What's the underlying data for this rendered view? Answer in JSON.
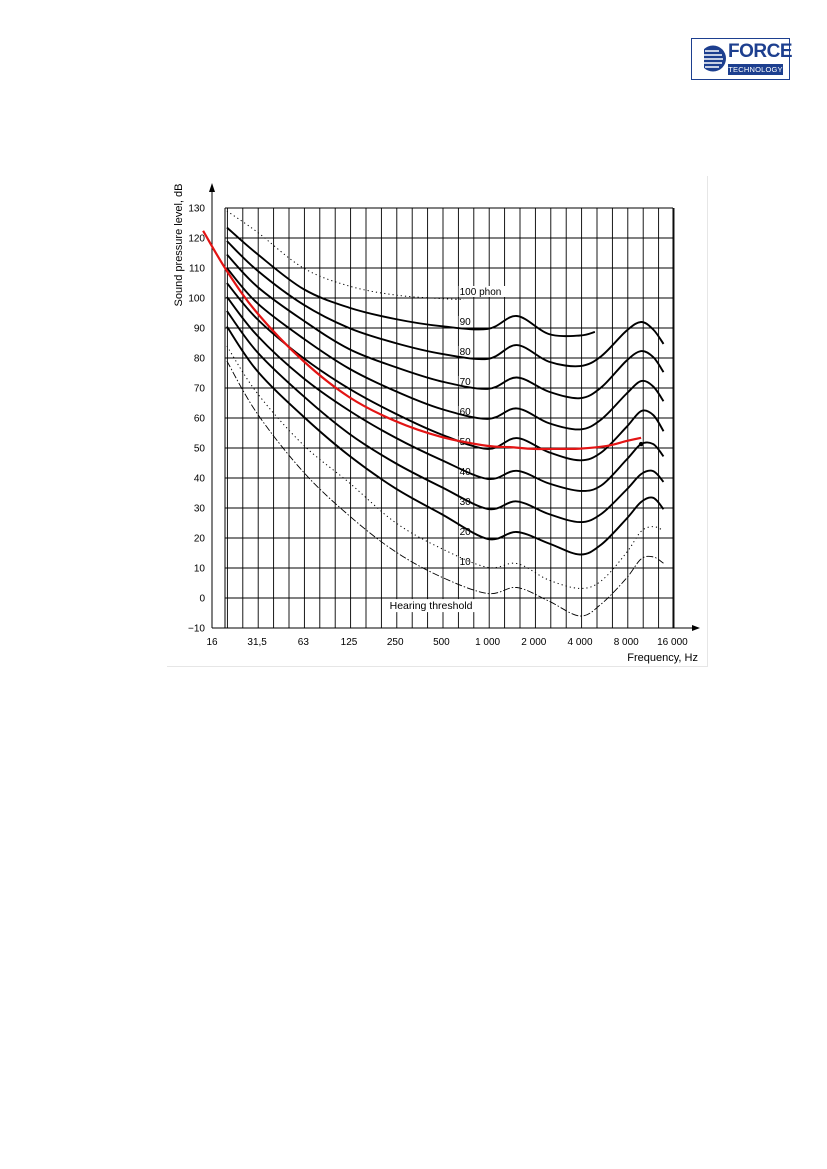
{
  "logo": {
    "main": "FORCE",
    "sub": "TECHNOLOGY"
  },
  "chart_data": {
    "type": "line",
    "ylabel": "Sound pressure level, dB",
    "xlabel": "Frequency, Hz",
    "x_scale": "log",
    "x_ticks": [
      {
        "value": 16,
        "label": "16"
      },
      {
        "value": 31.5,
        "label": "31,5"
      },
      {
        "value": 63,
        "label": "63"
      },
      {
        "value": 125,
        "label": "125"
      },
      {
        "value": 250,
        "label": "250"
      },
      {
        "value": 500,
        "label": "500"
      },
      {
        "value": 1000,
        "label": "1 000"
      },
      {
        "value": 2000,
        "label": "2 000"
      },
      {
        "value": 4000,
        "label": "4 000"
      },
      {
        "value": 8000,
        "label": "8 000"
      },
      {
        "value": 16000,
        "label": "16 000"
      }
    ],
    "ylim": [
      -10,
      130
    ],
    "y_ticks": [
      -10,
      0,
      10,
      20,
      30,
      40,
      50,
      60,
      70,
      80,
      90,
      100,
      110,
      120,
      130
    ],
    "y_tick_labels": [
      "−10",
      "0",
      "10",
      "20",
      "30",
      "40",
      "50",
      "60",
      "70",
      "80",
      "90",
      "100",
      "110",
      "120",
      "130"
    ],
    "grid": true,
    "contour_labels": [
      {
        "text": "100 phon",
        "x": 1000,
        "y": 102
      },
      {
        "text": "90",
        "x": 1000,
        "y": 92
      },
      {
        "text": "80",
        "x": 1000,
        "y": 82
      },
      {
        "text": "70",
        "x": 1000,
        "y": 72
      },
      {
        "text": "60",
        "x": 1000,
        "y": 62
      },
      {
        "text": "50",
        "x": 1000,
        "y": 52
      },
      {
        "text": "40",
        "x": 1000,
        "y": 42
      },
      {
        "text": "30",
        "x": 1000,
        "y": 32
      },
      {
        "text": "20",
        "x": 1000,
        "y": 22
      },
      {
        "text": "10",
        "x": 1000,
        "y": 12
      }
    ],
    "annotation": {
      "text": "Hearing threshold",
      "x": 1000,
      "y": -2.7
    },
    "marker": {
      "x": 10000,
      "y": 51.3
    },
    "series": [
      {
        "phon": 90,
        "style": "solid",
        "points": [
          [
            20,
            123.5
          ],
          [
            31.5,
            114.7
          ],
          [
            63,
            103
          ],
          [
            125,
            96.8
          ],
          [
            250,
            93
          ],
          [
            500,
            90.6
          ],
          [
            1000,
            89.7
          ],
          [
            1550,
            94
          ],
          [
            2500,
            88
          ],
          [
            4000,
            87.5
          ],
          [
            5000,
            88.7
          ]
        ]
      },
      {
        "phon": 80,
        "style": "solid",
        "points": [
          [
            20,
            119
          ],
          [
            31.5,
            109.2
          ],
          [
            63,
            97.8
          ],
          [
            125,
            90
          ],
          [
            250,
            85
          ],
          [
            500,
            81.4
          ],
          [
            1000,
            79.7
          ],
          [
            1550,
            84.3
          ],
          [
            2500,
            78.8
          ],
          [
            4000,
            77.3
          ],
          [
            5500,
            80.6
          ],
          [
            8000,
            89
          ],
          [
            10000,
            92
          ],
          [
            12000,
            89.5
          ],
          [
            14000,
            84.7
          ]
        ]
      },
      {
        "phon": 70,
        "style": "solid",
        "points": [
          [
            20,
            114.5
          ],
          [
            31.5,
            103.8
          ],
          [
            63,
            92.5
          ],
          [
            125,
            83
          ],
          [
            250,
            77
          ],
          [
            500,
            72.2
          ],
          [
            1000,
            69.7
          ],
          [
            1550,
            73.5
          ],
          [
            2500,
            68.8
          ],
          [
            4000,
            66.6
          ],
          [
            5500,
            70.2
          ],
          [
            8000,
            79
          ],
          [
            10000,
            82.3
          ],
          [
            12000,
            80.3
          ],
          [
            14000,
            75.3
          ]
        ]
      },
      {
        "phon": 60,
        "style": "solid",
        "points": [
          [
            20,
            110
          ],
          [
            31.5,
            98.3
          ],
          [
            63,
            86.5
          ],
          [
            125,
            76.5
          ],
          [
            250,
            69
          ],
          [
            500,
            63
          ],
          [
            1000,
            59.7
          ],
          [
            1550,
            63.2
          ],
          [
            2500,
            58.3
          ],
          [
            4000,
            56.2
          ],
          [
            5500,
            59.5
          ],
          [
            8000,
            68
          ],
          [
            10000,
            72.3
          ],
          [
            12000,
            70.5
          ],
          [
            14000,
            65.6
          ]
        ]
      },
      {
        "phon": 50,
        "style": "solid",
        "points": [
          [
            20,
            105
          ],
          [
            31.5,
            93
          ],
          [
            63,
            80
          ],
          [
            125,
            69.8
          ],
          [
            250,
            61.5
          ],
          [
            500,
            54.5
          ],
          [
            1000,
            49.7
          ],
          [
            1550,
            53.3
          ],
          [
            2500,
            48.6
          ],
          [
            4000,
            45.9
          ],
          [
            5500,
            48.5
          ],
          [
            8000,
            56.9
          ],
          [
            10000,
            62.3
          ],
          [
            12000,
            61
          ],
          [
            14000,
            55.6
          ]
        ]
      },
      {
        "phon": 40,
        "style": "solid",
        "points": [
          [
            20,
            100.4
          ],
          [
            31.5,
            87.5
          ],
          [
            63,
            73.3
          ],
          [
            125,
            62.5
          ],
          [
            250,
            53.5
          ],
          [
            500,
            46
          ],
          [
            1000,
            39.7
          ],
          [
            1550,
            42.4
          ],
          [
            2500,
            38.2
          ],
          [
            4000,
            35.7
          ],
          [
            5500,
            37.5
          ],
          [
            8000,
            46
          ],
          [
            10000,
            51.3
          ],
          [
            12000,
            51.3
          ],
          [
            14000,
            47.2
          ]
        ]
      },
      {
        "phon": 30,
        "style": "solid",
        "points": [
          [
            20,
            95.7
          ],
          [
            31.5,
            82
          ],
          [
            63,
            67.3
          ],
          [
            125,
            54.8
          ],
          [
            250,
            45
          ],
          [
            500,
            37
          ],
          [
            1000,
            29.7
          ],
          [
            1550,
            32.2
          ],
          [
            2500,
            28
          ],
          [
            4000,
            25.3
          ],
          [
            5500,
            28
          ],
          [
            8000,
            36
          ],
          [
            10000,
            41.3
          ],
          [
            12000,
            42.3
          ],
          [
            14000,
            38.7
          ]
        ]
      },
      {
        "phon": 20,
        "style": "solid",
        "points": [
          [
            20,
            90.5
          ],
          [
            31.5,
            75.7
          ],
          [
            63,
            60.5
          ],
          [
            125,
            47.5
          ],
          [
            250,
            36.6
          ],
          [
            500,
            28
          ],
          [
            1000,
            19.7
          ],
          [
            1550,
            22
          ],
          [
            2500,
            18.2
          ],
          [
            4000,
            14.5
          ],
          [
            5500,
            17.8
          ],
          [
            8000,
            26.3
          ],
          [
            10000,
            32
          ],
          [
            12000,
            33.4
          ],
          [
            14000,
            29.6
          ]
        ]
      },
      {
        "phon": 100,
        "style": "dotted",
        "points": [
          [
            20,
            129
          ],
          [
            31.5,
            122
          ],
          [
            63,
            110
          ],
          [
            125,
            104
          ],
          [
            250,
            101
          ],
          [
            500,
            99.8
          ],
          [
            700,
            99.5
          ]
        ]
      },
      {
        "phon": 10,
        "style": "dotted",
        "points": [
          [
            20,
            84
          ],
          [
            31.5,
            68.3
          ],
          [
            63,
            51
          ],
          [
            125,
            38.5
          ],
          [
            250,
            25.2
          ],
          [
            500,
            16.5
          ],
          [
            1000,
            10.2
          ],
          [
            1550,
            11.5
          ],
          [
            2500,
            6
          ],
          [
            4000,
            3.2
          ],
          [
            5500,
            5.7
          ],
          [
            8000,
            15
          ],
          [
            10000,
            22.2
          ],
          [
            12000,
            23.8
          ],
          [
            14000,
            22.5
          ]
        ]
      },
      {
        "name": "Hearing threshold",
        "style": "dashed",
        "points": [
          [
            20,
            79
          ],
          [
            31.5,
            61.5
          ],
          [
            63,
            42
          ],
          [
            125,
            27.5
          ],
          [
            250,
            15.5
          ],
          [
            500,
            7
          ],
          [
            1000,
            1.5
          ],
          [
            1550,
            3.5
          ],
          [
            2500,
            -1
          ],
          [
            4000,
            -6
          ],
          [
            5500,
            -2
          ],
          [
            8000,
            6.5
          ],
          [
            10000,
            13
          ],
          [
            12000,
            13.7
          ],
          [
            14000,
            11.6
          ]
        ]
      },
      {
        "style": "red",
        "color": "#e31414",
        "points": [
          [
            14,
            122.4
          ],
          [
            20,
            109
          ],
          [
            31.5,
            95
          ],
          [
            63,
            79
          ],
          [
            125,
            67
          ],
          [
            250,
            59
          ],
          [
            500,
            53.7
          ],
          [
            1000,
            50.7
          ],
          [
            1400,
            50.3
          ],
          [
            2000,
            49.7
          ],
          [
            3000,
            49.7
          ],
          [
            4000,
            49.8
          ],
          [
            6000,
            50.7
          ],
          [
            8000,
            52.3
          ],
          [
            10000,
            53.4
          ]
        ]
      }
    ]
  }
}
